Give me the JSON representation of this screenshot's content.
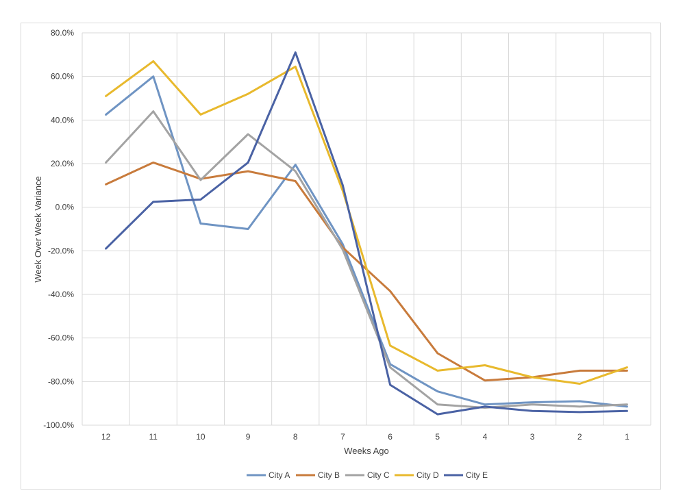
{
  "chart_data": {
    "type": "line",
    "title": "",
    "xlabel": "Weeks Ago",
    "ylabel": "Week Over Week Variance",
    "categories": [
      "12",
      "11",
      "10",
      "9",
      "8",
      "7",
      "6",
      "5",
      "4",
      "3",
      "2",
      "1"
    ],
    "ylim": [
      -100,
      80
    ],
    "ytick_step": 20,
    "ytick_labels": [
      "80.0%",
      "60.0%",
      "40.0%",
      "20.0%",
      "0.0%",
      "-20.0%",
      "-40.0%",
      "-60.0%",
      "-80.0%",
      "-100.0%"
    ],
    "grid": true,
    "legend_position": "bottom",
    "series": [
      {
        "name": "City A",
        "color": "#6f94c3",
        "values": [
          42.5,
          60.0,
          -7.5,
          -10.0,
          19.5,
          -17.0,
          -72.0,
          -84.5,
          -90.5,
          -89.5,
          -89.0,
          -91.5
        ]
      },
      {
        "name": "City B",
        "color": "#c87b3c",
        "values": [
          10.5,
          20.5,
          13.0,
          16.5,
          12.0,
          -18.5,
          -38.5,
          -67.0,
          -79.5,
          -78.0,
          -75.0,
          -75.0
        ]
      },
      {
        "name": "City C",
        "color": "#a3a3a3",
        "values": [
          20.5,
          44.0,
          12.5,
          33.5,
          16.5,
          -19.5,
          -73.5,
          -90.5,
          -92.0,
          -90.5,
          -91.5,
          -90.5
        ]
      },
      {
        "name": "City D",
        "color": "#e8b92d",
        "values": [
          51.0,
          67.0,
          42.5,
          52.0,
          64.5,
          7.5,
          -63.5,
          -75.0,
          -72.5,
          -78.0,
          -81.0,
          -73.5
        ]
      },
      {
        "name": "City E",
        "color": "#4a62a4",
        "values": [
          -19.0,
          2.5,
          3.5,
          20.5,
          71.0,
          10.0,
          -81.5,
          -95.0,
          -91.5,
          -93.5,
          -94.0,
          -93.5
        ]
      }
    ]
  }
}
